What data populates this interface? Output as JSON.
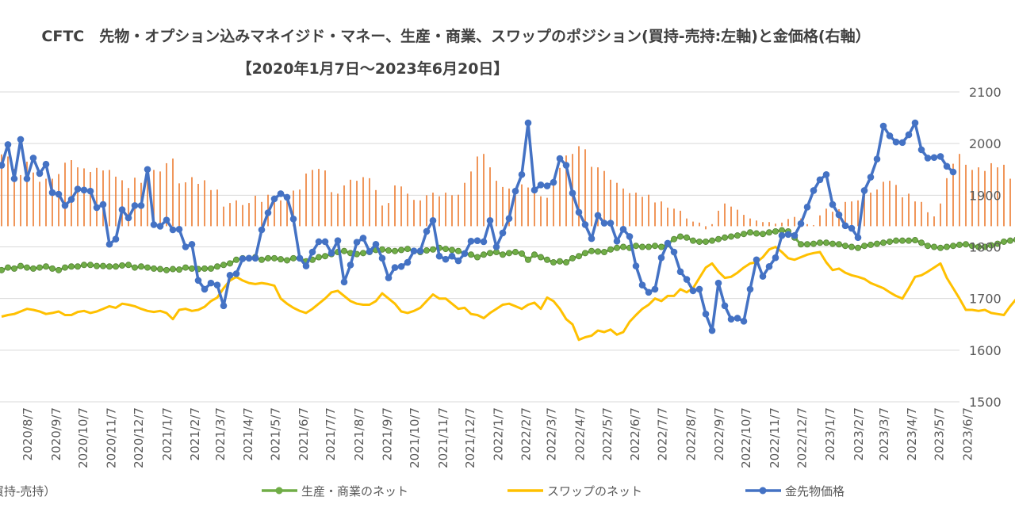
{
  "chart_data": {
    "type": "bar+line",
    "title_line1": "CFTC　先物・オプション込みマネイジド・マネー、生産・商業、スワップのポジション(買持-売持:左軸)と金価格(右軸）",
    "title_line2": "【2020年1月7日～2023年6月20日】",
    "right_axis": {
      "ylim": [
        1500,
        2100
      ],
      "ticks": [
        "2100",
        "2000",
        "1900",
        "1800",
        "1700",
        "1600",
        "1500"
      ]
    },
    "x_tick_labels": [
      "2020/8/7",
      "2020/9/7",
      "2020/10/7",
      "2020/11/7",
      "2020/12/7",
      "2021/1/7",
      "2021/2/7",
      "2021/3/7",
      "2021/4/7",
      "2021/5/7",
      "2021/6/7",
      "2021/7/7",
      "2021/8/7",
      "2021/9/7",
      "2021/10/7",
      "2021/11/7",
      "2021/12/7",
      "2022/1/7",
      "2022/2/7",
      "2022/3/7",
      "2022/4/7",
      "2022/5/7",
      "2022/6/7",
      "2022/7/7",
      "2022/8/7",
      "2022/9/7",
      "2022/10/7",
      "2022/11/7",
      "2022/12/7",
      "2023/1/7",
      "2023/2/7",
      "2023/3/7",
      "2023/4/7",
      "2023/5/7",
      "2023/6/7"
    ],
    "x_tick_weeks": [
      4.1,
      8.6,
      12.9,
      17.3,
      21.6,
      26.1,
      30.5,
      34.5,
      38.9,
      43.2,
      47.6,
      51.9,
      56.4,
      60.8,
      65.1,
      69.6,
      73.9,
      78.3,
      82.7,
      86.7,
      91.2,
      95.5,
      99.9,
      104.2,
      108.7,
      113.1,
      117.4,
      121.9,
      126.2,
      130.6,
      135.1,
      139.1,
      143.5,
      147.8,
      152.3
    ],
    "legend": [
      "マネイジド・マネー（買持-売持）",
      "生産・商業のネット",
      "スワップのネット",
      "金先物価格"
    ],
    "colors": {
      "managed_money": "#ED7D31",
      "producer": "#70AD47",
      "producer_marker": "#548235",
      "swap": "#FFC000",
      "gold": "#4472C4"
    },
    "series": [
      {
        "name": "マネイジド・マネー（買持-売持）",
        "kind": "bar",
        "units": "right-axis scale",
        "values": [
          1979,
          1975,
          1951,
          1939,
          1965,
          1944,
          1926,
          1932,
          1932,
          1941,
          1963,
          1968,
          1954,
          1952,
          1945,
          1953,
          1948,
          1949,
          1936,
          1929,
          1914,
          1934,
          1924,
          1944,
          1949,
          1946,
          1962,
          1971,
          1923,
          1925,
          1935,
          1922,
          1929,
          1910,
          1911,
          1878,
          1885,
          1890,
          1881,
          1885,
          1899,
          1887,
          1901,
          1895,
          1890,
          1894,
          1909,
          1911,
          1942,
          1949,
          1951,
          1948,
          1906,
          1903,
          1919,
          1930,
          1928,
          1935,
          1933,
          1910,
          1880,
          1885,
          1919,
          1917,
          1903,
          1891,
          1890,
          1900,
          1905,
          1898,
          1905,
          1900,
          1901,
          1924,
          1946,
          1975,
          1980,
          1954,
          1928,
          1916,
          1913,
          1900,
          1921,
          1915,
          1912,
          1898,
          1895,
          1924,
          1953,
          1977,
          1980,
          1995,
          1989,
          1955,
          1954,
          1947,
          1930,
          1924,
          1913,
          1904,
          1905,
          1897,
          1901,
          1886,
          1888,
          1876,
          1874,
          1870,
          1855,
          1849,
          1847,
          1834,
          1844,
          1870,
          1884,
          1878,
          1872,
          1862,
          1855,
          1851,
          1848,
          1848,
          1845,
          1847,
          1854,
          1858,
          1855,
          1844,
          1842,
          1861,
          1874,
          1868,
          1873,
          1887,
          1888,
          1890,
          1900,
          1905,
          1911,
          1926,
          1928,
          1920,
          1896,
          1903,
          1888,
          1887,
          1867,
          1859,
          1884,
          1933,
          1961,
          1980,
          1959,
          1949,
          1954,
          1947,
          1962,
          1954,
          1959,
          1932,
          1939,
          1931,
          1919,
          1923
        ]
      },
      {
        "name": "生産・商業のネット",
        "kind": "line-marker",
        "values": [
          1755,
          1760,
          1758,
          1763,
          1760,
          1758,
          1760,
          1762,
          1758,
          1755,
          1760,
          1762,
          1762,
          1765,
          1765,
          1763,
          1763,
          1762,
          1762,
          1764,
          1765,
          1760,
          1762,
          1760,
          1758,
          1757,
          1755,
          1757,
          1756,
          1760,
          1758,
          1757,
          1758,
          1758,
          1762,
          1765,
          1768,
          1775,
          1778,
          1778,
          1780,
          1775,
          1778,
          1778,
          1776,
          1774,
          1778,
          1778,
          1772,
          1775,
          1780,
          1782,
          1786,
          1790,
          1792,
          1788,
          1786,
          1788,
          1790,
          1794,
          1795,
          1793,
          1792,
          1794,
          1796,
          1792,
          1790,
          1793,
          1795,
          1798,
          1796,
          1794,
          1792,
          1787,
          1785,
          1780,
          1785,
          1788,
          1790,
          1785,
          1788,
          1790,
          1787,
          1775,
          1785,
          1780,
          1775,
          1770,
          1772,
          1770,
          1778,
          1782,
          1788,
          1792,
          1791,
          1790,
          1795,
          1798,
          1800,
          1798,
          1802,
          1800,
          1800,
          1802,
          1800,
          1805,
          1815,
          1820,
          1818,
          1812,
          1810,
          1810,
          1812,
          1815,
          1818,
          1820,
          1822,
          1825,
          1828,
          1826,
          1825,
          1828,
          1830,
          1832,
          1830,
          1818,
          1805,
          1805,
          1806,
          1808,
          1808,
          1806,
          1805,
          1802,
          1800,
          1798,
          1802,
          1804,
          1806,
          1808,
          1810,
          1812,
          1812,
          1812,
          1813,
          1808,
          1802,
          1800,
          1798,
          1800,
          1802,
          1804,
          1805,
          1802,
          1800,
          1800,
          1803,
          1806,
          1810,
          1812,
          1814,
          1815,
          1815
        ]
      },
      {
        "name": "スワップのネット",
        "kind": "line",
        "values": [
          1665,
          1668,
          1670,
          1675,
          1680,
          1678,
          1675,
          1670,
          1672,
          1675,
          1668,
          1668,
          1674,
          1676,
          1672,
          1675,
          1680,
          1685,
          1682,
          1690,
          1688,
          1685,
          1680,
          1676,
          1674,
          1676,
          1672,
          1660,
          1678,
          1680,
          1676,
          1678,
          1684,
          1695,
          1702,
          1720,
          1735,
          1742,
          1735,
          1730,
          1728,
          1730,
          1728,
          1725,
          1700,
          1690,
          1682,
          1676,
          1672,
          1680,
          1690,
          1700,
          1712,
          1715,
          1705,
          1695,
          1690,
          1688,
          1688,
          1695,
          1710,
          1700,
          1690,
          1675,
          1672,
          1676,
          1682,
          1695,
          1708,
          1700,
          1700,
          1690,
          1680,
          1682,
          1670,
          1668,
          1662,
          1672,
          1680,
          1688,
          1690,
          1685,
          1680,
          1688,
          1692,
          1680,
          1702,
          1695,
          1680,
          1660,
          1650,
          1620,
          1625,
          1628,
          1638,
          1635,
          1640,
          1630,
          1635,
          1655,
          1668,
          1680,
          1688,
          1700,
          1695,
          1705,
          1705,
          1718,
          1712,
          1720,
          1740,
          1760,
          1768,
          1752,
          1740,
          1742,
          1750,
          1760,
          1768,
          1770,
          1780,
          1795,
          1800,
          1790,
          1778,
          1775,
          1780,
          1785,
          1788,
          1790,
          1770,
          1755,
          1758,
          1750,
          1745,
          1742,
          1738,
          1730,
          1725,
          1720,
          1712,
          1705,
          1700,
          1720,
          1742,
          1745,
          1752,
          1760,
          1768,
          1740,
          1720,
          1700,
          1678,
          1678,
          1676,
          1678,
          1672,
          1670,
          1668,
          1685,
          1700,
          1705,
          1700,
          1708,
          1712
        ]
      },
      {
        "name": "金先物価格",
        "kind": "line-marker",
        "values": [
          1958,
          1998,
          1932,
          2008,
          1932,
          1972,
          1942,
          1960,
          1905,
          1902,
          1880,
          1892,
          1912,
          1910,
          1908,
          1876,
          1882,
          1805,
          1815,
          1872,
          1856,
          1880,
          1880,
          1950,
          1843,
          1840,
          1852,
          1833,
          1834,
          1800,
          1805,
          1735,
          1718,
          1730,
          1726,
          1686,
          1745,
          1748,
          1777,
          1778,
          1778,
          1833,
          1866,
          1893,
          1903,
          1896,
          1854,
          1778,
          1763,
          1790,
          1810,
          1810,
          1788,
          1812,
          1732,
          1765,
          1809,
          1817,
          1791,
          1805,
          1778,
          1740,
          1760,
          1762,
          1770,
          1792,
          1792,
          1830,
          1851,
          1782,
          1776,
          1782,
          1773,
          1787,
          1811,
          1812,
          1810,
          1851,
          1800,
          1827,
          1855,
          1908,
          1940,
          2040,
          1910,
          1920,
          1918,
          1925,
          1971,
          1958,
          1904,
          1867,
          1843,
          1816,
          1861,
          1846,
          1846,
          1811,
          1834,
          1820,
          1763,
          1726,
          1712,
          1718,
          1779,
          1807,
          1790,
          1752,
          1737,
          1715,
          1718,
          1670,
          1638,
          1730,
          1686,
          1660,
          1662,
          1656,
          1718,
          1775,
          1743,
          1762,
          1779,
          1822,
          1824,
          1822,
          1845,
          1877,
          1909,
          1930,
          1940,
          1882,
          1862,
          1841,
          1836,
          1818,
          1909,
          1935,
          1970,
          2034,
          2015,
          2003,
          2002,
          2017,
          2040,
          1988,
          1972,
          1973,
          1975,
          1956,
          1945
        ]
      }
    ]
  }
}
